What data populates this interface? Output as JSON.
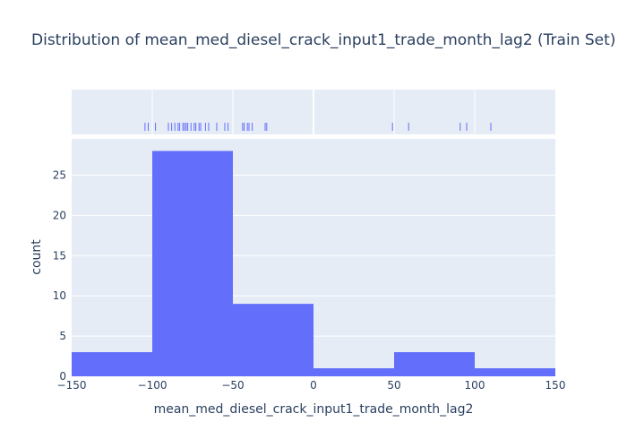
{
  "chart_data": {
    "type": "bar",
    "title": "Distribution of mean_med_diesel_crack_input1_trade_month_lag2 (Train Set)",
    "xlabel": "mean_med_diesel_crack_input1_trade_month_lag2",
    "ylabel": "count",
    "bins": [
      {
        "start": -150,
        "end": -100,
        "count": 3
      },
      {
        "start": -100,
        "end": -50,
        "count": 28
      },
      {
        "start": -50,
        "end": 0,
        "count": 9
      },
      {
        "start": 0,
        "end": 50,
        "count": 1
      },
      {
        "start": 50,
        "end": 100,
        "count": 3
      },
      {
        "start": 100,
        "end": 150,
        "count": 1
      }
    ],
    "xlim": [
      -150,
      150
    ],
    "ylim": [
      0,
      29.5
    ],
    "x_ticks": [
      -150,
      -100,
      -50,
      0,
      50,
      100,
      150
    ],
    "x_tick_labels": [
      "−150",
      "−100",
      "−50",
      "0",
      "50",
      "100",
      "150"
    ],
    "y_ticks": [
      0,
      5,
      10,
      15,
      20,
      25
    ],
    "y_tick_labels": [
      "0",
      "5",
      "10",
      "15",
      "20",
      "25"
    ],
    "rug_values": [
      -104.5,
      -102.5,
      -98,
      -90,
      -88,
      -86,
      -84,
      -83,
      -81,
      -80,
      -79,
      -78,
      -76,
      -74,
      -73,
      -71,
      -70,
      -67,
      -65,
      -60,
      -55,
      -53,
      -44,
      -43,
      -41,
      -40,
      -38,
      -30,
      -29,
      49,
      59,
      91,
      95,
      110
    ],
    "colors": {
      "bar": "#636efa",
      "plot_bg": "#e5ecf6",
      "grid": "#ffffff",
      "text": "#2a3f5f"
    },
    "grid": true,
    "legend": "none"
  }
}
